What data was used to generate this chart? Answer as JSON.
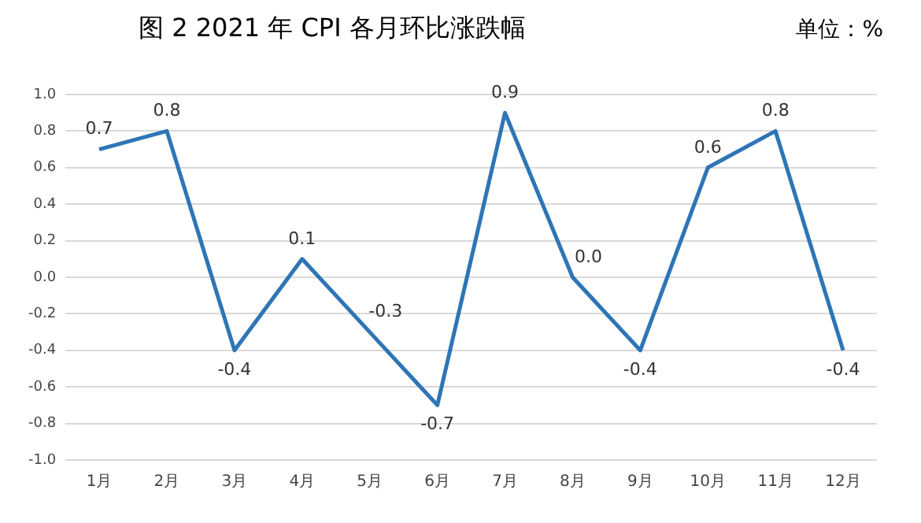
{
  "chart_data": {
    "type": "line",
    "title": "图 2  2021 年 CPI 各月环比涨跌幅",
    "annotations": [
      "单位：%"
    ],
    "categories": [
      "1月",
      "2月",
      "3月",
      "4月",
      "5月",
      "6月",
      "7月",
      "8月",
      "9月",
      "10月",
      "11月",
      "12月"
    ],
    "series": [
      {
        "color": "#2e75b6",
        "values": [
          0.7,
          0.8,
          -0.4,
          0.1,
          -0.3,
          -0.7,
          0.9,
          0.0,
          -0.4,
          0.6,
          0.8,
          -0.4
        ],
        "value_labels": [
          "0.7",
          "0.8",
          "-0.4",
          "0.1",
          "-0.3",
          "-0.7",
          "0.9",
          "0.0",
          "-0.4",
          "0.6",
          "0.8",
          "-0.4"
        ]
      }
    ],
    "ylim": [
      -1,
      1
    ],
    "yticks": [
      {
        "value": -1,
        "label": "-1.0"
      },
      -0.8,
      -0.6,
      -0.4,
      -0.2,
      {
        "value": 0,
        "label": "0.0"
      },
      0.2,
      0.4,
      0.6,
      0.8,
      {
        "value": 1,
        "label": "1.0"
      }
    ],
    "grid": "y",
    "legend": false,
    "marker": "none",
    "line_style": "solid"
  }
}
